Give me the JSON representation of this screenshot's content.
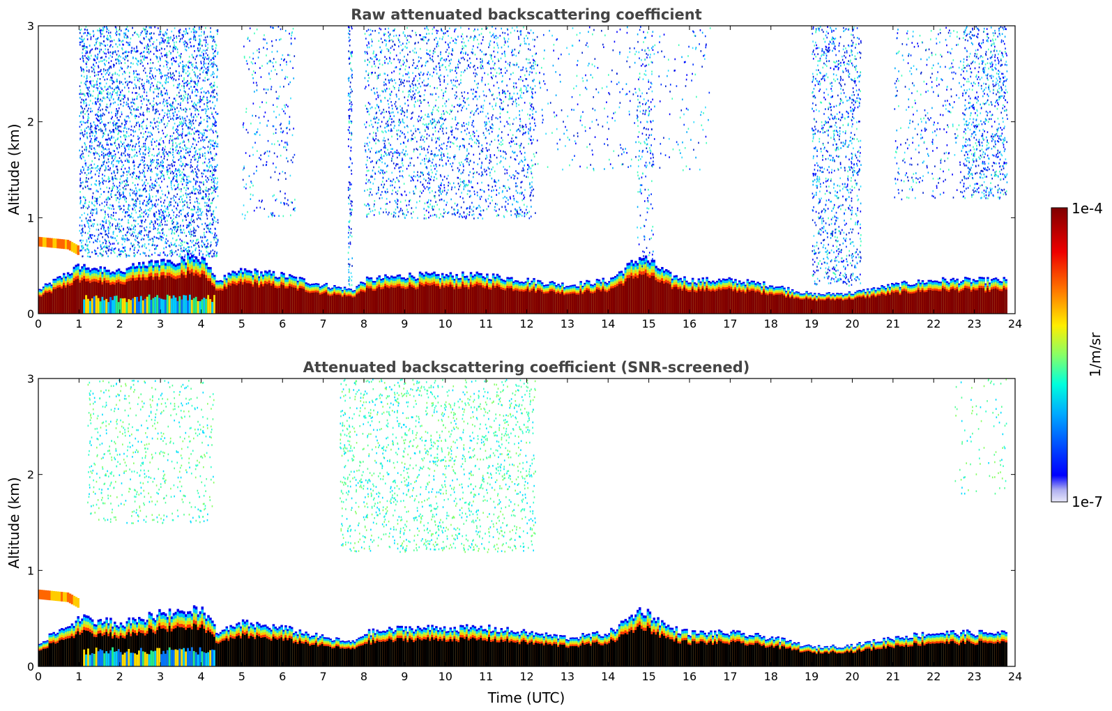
{
  "chart_data": [
    {
      "type": "heatmap",
      "title": "Raw attenuated backscattering coefficient",
      "xlabel": "",
      "ylabel": "Altitude (km)",
      "xlim": [
        0,
        24
      ],
      "ylim": [
        0,
        3
      ],
      "xticks": [
        "0",
        "1",
        "2",
        "3",
        "4",
        "5",
        "6",
        "7",
        "8",
        "9",
        "10",
        "11",
        "12",
        "13",
        "14",
        "15",
        "16",
        "17",
        "18",
        "19",
        "20",
        "21",
        "22",
        "23",
        "24"
      ],
      "yticks": [
        "0",
        "1",
        "2",
        "3"
      ],
      "data_end_time": 23.8,
      "boundary_layer_top_km": [
        [
          0,
          0.25
        ],
        [
          1,
          0.5
        ],
        [
          2,
          0.45
        ],
        [
          3,
          0.55
        ],
        [
          4,
          0.6
        ],
        [
          4.4,
          0.35
        ],
        [
          5,
          0.45
        ],
        [
          6,
          0.4
        ],
        [
          7,
          0.3
        ],
        [
          7.7,
          0.25
        ],
        [
          8,
          0.35
        ],
        [
          9,
          0.4
        ],
        [
          10,
          0.4
        ],
        [
          11,
          0.4
        ],
        [
          12,
          0.35
        ],
        [
          13,
          0.3
        ],
        [
          14,
          0.35
        ],
        [
          14.8,
          0.6
        ],
        [
          15.5,
          0.4
        ],
        [
          16,
          0.35
        ],
        [
          17,
          0.35
        ],
        [
          18,
          0.3
        ],
        [
          19,
          0.2
        ],
        [
          20,
          0.22
        ],
        [
          21,
          0.3
        ],
        [
          22,
          0.35
        ],
        [
          23,
          0.35
        ],
        [
          23.8,
          0.35
        ]
      ],
      "aerosol_layer_km": [
        [
          0,
          0.75
        ],
        [
          0.7,
          0.72
        ],
        [
          1,
          0.65
        ]
      ],
      "noise_regions": [
        {
          "t0": 1.0,
          "t1": 4.4,
          "z0": 0.6,
          "z1": 3.0,
          "density": 0.55
        },
        {
          "t0": 5.0,
          "t1": 6.3,
          "z0": 1.0,
          "z1": 3.0,
          "density": 0.12
        },
        {
          "t0": 7.6,
          "t1": 7.7,
          "z0": 0.3,
          "z1": 3.0,
          "density": 0.6
        },
        {
          "t0": 8.0,
          "t1": 12.2,
          "z0": 1.0,
          "z1": 3.0,
          "density": 0.3
        },
        {
          "t0": 12.2,
          "t1": 16.5,
          "z0": 1.5,
          "z1": 3.0,
          "density": 0.06
        },
        {
          "t0": 14.7,
          "t1": 15.1,
          "z0": 0.5,
          "z1": 3.0,
          "density": 0.2
        },
        {
          "t0": 19.0,
          "t1": 20.2,
          "z0": 0.3,
          "z1": 3.0,
          "density": 0.35
        },
        {
          "t0": 21.0,
          "t1": 23.8,
          "z0": 1.2,
          "z1": 3.0,
          "density": 0.12
        },
        {
          "t0": 22.7,
          "t1": 23.8,
          "z0": 1.2,
          "z1": 3.0,
          "density": 0.3
        }
      ]
    },
    {
      "type": "heatmap",
      "title": "Attenuated backscattering coefficient (SNR-screened)",
      "xlabel": "Time (UTC)",
      "ylabel": "Altitude (km)",
      "xlim": [
        0,
        24
      ],
      "ylim": [
        0,
        3
      ],
      "xticks": [
        "0",
        "1",
        "2",
        "3",
        "4",
        "5",
        "6",
        "7",
        "8",
        "9",
        "10",
        "11",
        "12",
        "13",
        "14",
        "15",
        "16",
        "17",
        "18",
        "19",
        "20",
        "21",
        "22",
        "23",
        "24"
      ],
      "yticks": [
        "0",
        "1",
        "2",
        "3"
      ],
      "data_end_time": 23.8,
      "noise_regions": [
        {
          "t0": 1.2,
          "t1": 4.3,
          "z0": 1.5,
          "z1": 3.0,
          "density": 0.15
        },
        {
          "t0": 7.4,
          "t1": 12.2,
          "z0": 1.2,
          "z1": 3.0,
          "density": 0.22
        },
        {
          "t0": 22.5,
          "t1": 23.8,
          "z0": 1.8,
          "z1": 3.0,
          "density": 0.06
        }
      ]
    }
  ],
  "colorbar": {
    "max_label": "1e-4",
    "min_label": "1e-7",
    "unit_label": "1/m/sr",
    "colormap": "jet"
  }
}
